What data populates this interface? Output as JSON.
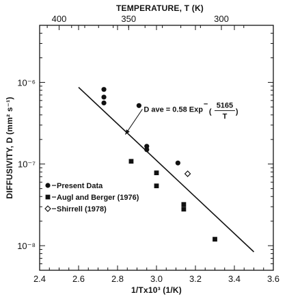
{
  "chart_data": {
    "type": "scatter",
    "x_axis": {
      "label": "1/Tx10³ (1/K)",
      "range": [
        2.4,
        3.6
      ],
      "ticks": [
        2.4,
        2.6,
        2.8,
        3.0,
        3.2,
        3.4,
        3.6
      ],
      "tick_labels": [
        "2.4",
        "2.6",
        "2.8",
        "3.0",
        "3.2",
        "3.4",
        "3.6"
      ]
    },
    "y_axis": {
      "label": "DIFFUSIVITY, D (mm² s⁻¹)",
      "scale": "log",
      "range": [
        5e-09,
        5e-06
      ],
      "ticks": [
        1e-08,
        1e-07,
        1e-06
      ],
      "tick_labels": [
        "10⁻⁸",
        "10⁻⁷",
        "10⁻⁶"
      ]
    },
    "top_axis": {
      "label": "TEMPERATURE, T (K)",
      "ticks": [
        400,
        350,
        300
      ],
      "tick_labels": [
        "400",
        "350",
        "300"
      ]
    },
    "series": [
      {
        "name": "Present Data",
        "marker": "filled-circle",
        "points": [
          {
            "x": 2.73,
            "y": 8.2e-07
          },
          {
            "x": 2.73,
            "y": 6.6e-07
          },
          {
            "x": 2.73,
            "y": 5.6e-07
          },
          {
            "x": 2.91,
            "y": 5.2e-07
          },
          {
            "x": 2.95,
            "y": 1.65e-07
          },
          {
            "x": 2.95,
            "y": 1.5e-07
          },
          {
            "x": 3.11,
            "y": 1.03e-07
          }
        ]
      },
      {
        "name": "Augl and Berger (1976)",
        "marker": "filled-square",
        "points": [
          {
            "x": 2.87,
            "y": 1.08e-07
          },
          {
            "x": 3.0,
            "y": 7.8e-08
          },
          {
            "x": 3.0,
            "y": 5.4e-08
          },
          {
            "x": 3.14,
            "y": 3.2e-08
          },
          {
            "x": 3.14,
            "y": 2.8e-08
          },
          {
            "x": 3.3,
            "y": 1.2e-08
          }
        ]
      },
      {
        "name": "Shirrell (1978)",
        "marker": "open-diamond",
        "points": [
          {
            "x": 3.16,
            "y": 7.6e-08
          }
        ]
      }
    ],
    "fit_line": {
      "x": [
        2.6,
        3.5
      ],
      "y": [
        8.7e-07,
        8.4e-09
      ]
    },
    "annotation": {
      "prefix": "D ave = 0.58 Exp",
      "numerator": "5165",
      "denominator": "T",
      "arrow_to": {
        "x": 2.84,
        "y": 2.3e-07
      }
    },
    "legend": {
      "position": "lower-left",
      "entries": [
        "Present Data",
        "Augl and Berger (1976)",
        "Shirrell (1978)"
      ]
    },
    "grid": false
  }
}
